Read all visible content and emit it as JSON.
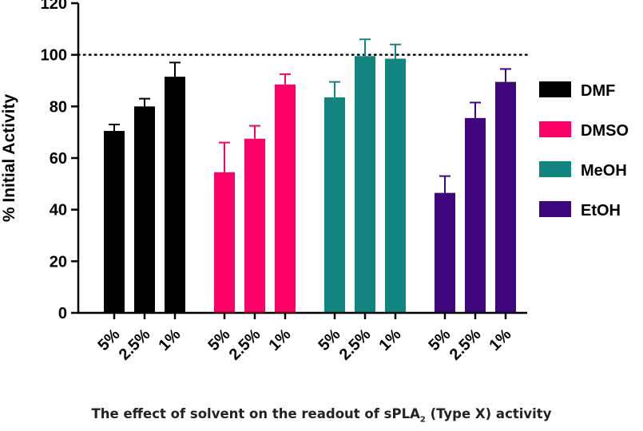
{
  "chart_data": {
    "type": "bar",
    "ylabel": "% Initial Activity",
    "ylim": [
      0,
      120
    ],
    "yticks": [
      "0",
      "20",
      "40",
      "60",
      "80",
      "100",
      "120"
    ],
    "reference_line": {
      "value": 100,
      "style": "dotted"
    },
    "legend_position": "right",
    "caption": {
      "before": "The effect of solvent on the readout of sPLA",
      "subscript": "2",
      "after": " (Type X) activity"
    },
    "groups": [
      {
        "name": "DMF",
        "color": "#000000",
        "categories": [
          "5%",
          "2.5%",
          "1%"
        ],
        "values": [
          70.5,
          80,
          91.5
        ],
        "errors": [
          2.5,
          3,
          5.5
        ]
      },
      {
        "name": "DMSO",
        "color": "#ff0066",
        "categories": [
          "5%",
          "2.5%",
          "1%"
        ],
        "values": [
          54.5,
          67.5,
          88.5
        ],
        "errors": [
          11.5,
          5,
          4
        ]
      },
      {
        "name": "MeOH",
        "color": "#128580",
        "categories": [
          "5%",
          "2.5%",
          "1%"
        ],
        "values": [
          83.5,
          99.5,
          98.5
        ],
        "errors": [
          6,
          6.5,
          5.5
        ]
      },
      {
        "name": "EtOH",
        "color": "#3f077e",
        "categories": [
          "5%",
          "2.5%",
          "1%"
        ],
        "values": [
          46.5,
          75.5,
          89.5
        ],
        "errors": [
          6.5,
          6,
          5
        ]
      }
    ]
  }
}
